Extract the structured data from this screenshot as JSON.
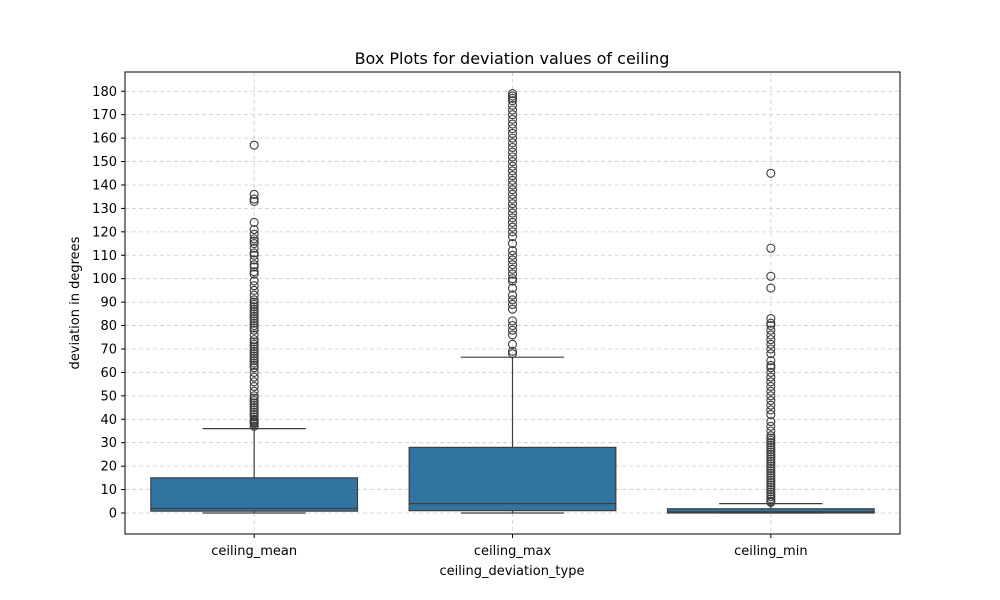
{
  "chart_data": {
    "type": "box",
    "title": "Box Plots for deviation values of ceiling",
    "xlabel": "ceiling_deviation_type",
    "ylabel": "deviation in degrees",
    "ylim": [
      -9,
      184
    ],
    "yticks": [
      0,
      10,
      20,
      30,
      40,
      50,
      60,
      70,
      80,
      90,
      100,
      110,
      120,
      130,
      140,
      150,
      160,
      170,
      180
    ],
    "grid": true,
    "box_color": "#3274a1",
    "line_color": "#3d3d3d",
    "grid_color": "#cccccc",
    "categories": [
      "ceiling_mean",
      "ceiling_max",
      "ceiling_min"
    ],
    "boxes": [
      {
        "name": "ceiling_mean",
        "whisker_low": 0,
        "q1": 0.8,
        "median": 2,
        "q3": 15,
        "whisker_high": 36,
        "outliers": [
          37,
          38,
          38.5,
          39,
          39.5,
          40,
          41,
          42,
          43,
          44,
          45,
          46,
          47,
          48,
          49,
          50,
          52,
          54,
          56,
          58,
          60,
          62,
          63,
          64,
          65,
          66,
          67,
          68,
          69,
          70,
          71,
          72,
          73,
          74,
          76,
          78,
          79,
          80,
          81,
          82,
          83,
          84,
          85,
          86,
          87,
          88,
          89,
          90,
          91,
          93,
          95,
          97,
          99,
          102,
          103,
          105,
          106,
          108,
          110,
          111,
          113,
          115,
          116,
          117,
          119,
          121,
          124,
          133,
          134,
          136,
          157
        ]
      },
      {
        "name": "ceiling_max",
        "whisker_low": 0,
        "q1": 1,
        "median": 4,
        "q3": 28,
        "whisker_high": 66.5,
        "outliers": [
          68,
          69,
          72,
          76,
          78,
          80,
          82,
          87,
          89,
          91,
          93,
          96,
          99,
          100,
          102,
          104,
          106,
          108,
          110,
          112,
          115,
          118,
          120,
          122,
          124,
          126,
          128,
          130,
          132,
          134,
          136,
          138,
          140,
          142,
          144,
          146,
          148,
          150,
          152,
          154,
          156,
          158,
          160,
          162,
          164,
          166,
          168,
          170,
          172,
          174,
          176,
          177,
          178,
          179
        ]
      },
      {
        "name": "ceiling_min",
        "whisker_low": 0,
        "q1": 0,
        "median": 0.5,
        "q3": 1.8,
        "whisker_high": 4,
        "outliers": [
          4.5,
          5,
          6,
          7,
          8,
          9,
          10,
          11,
          12,
          13,
          14,
          15,
          16,
          17,
          18,
          19,
          20,
          21,
          22,
          23,
          24,
          25,
          26,
          27,
          28,
          29,
          30,
          31,
          32,
          33,
          35,
          37,
          39,
          42,
          44,
          46,
          48,
          50,
          52,
          54,
          56,
          58,
          60,
          62,
          63,
          65,
          68,
          70,
          72,
          74,
          76,
          78,
          80,
          81,
          83,
          96,
          101,
          113,
          145
        ]
      }
    ]
  }
}
